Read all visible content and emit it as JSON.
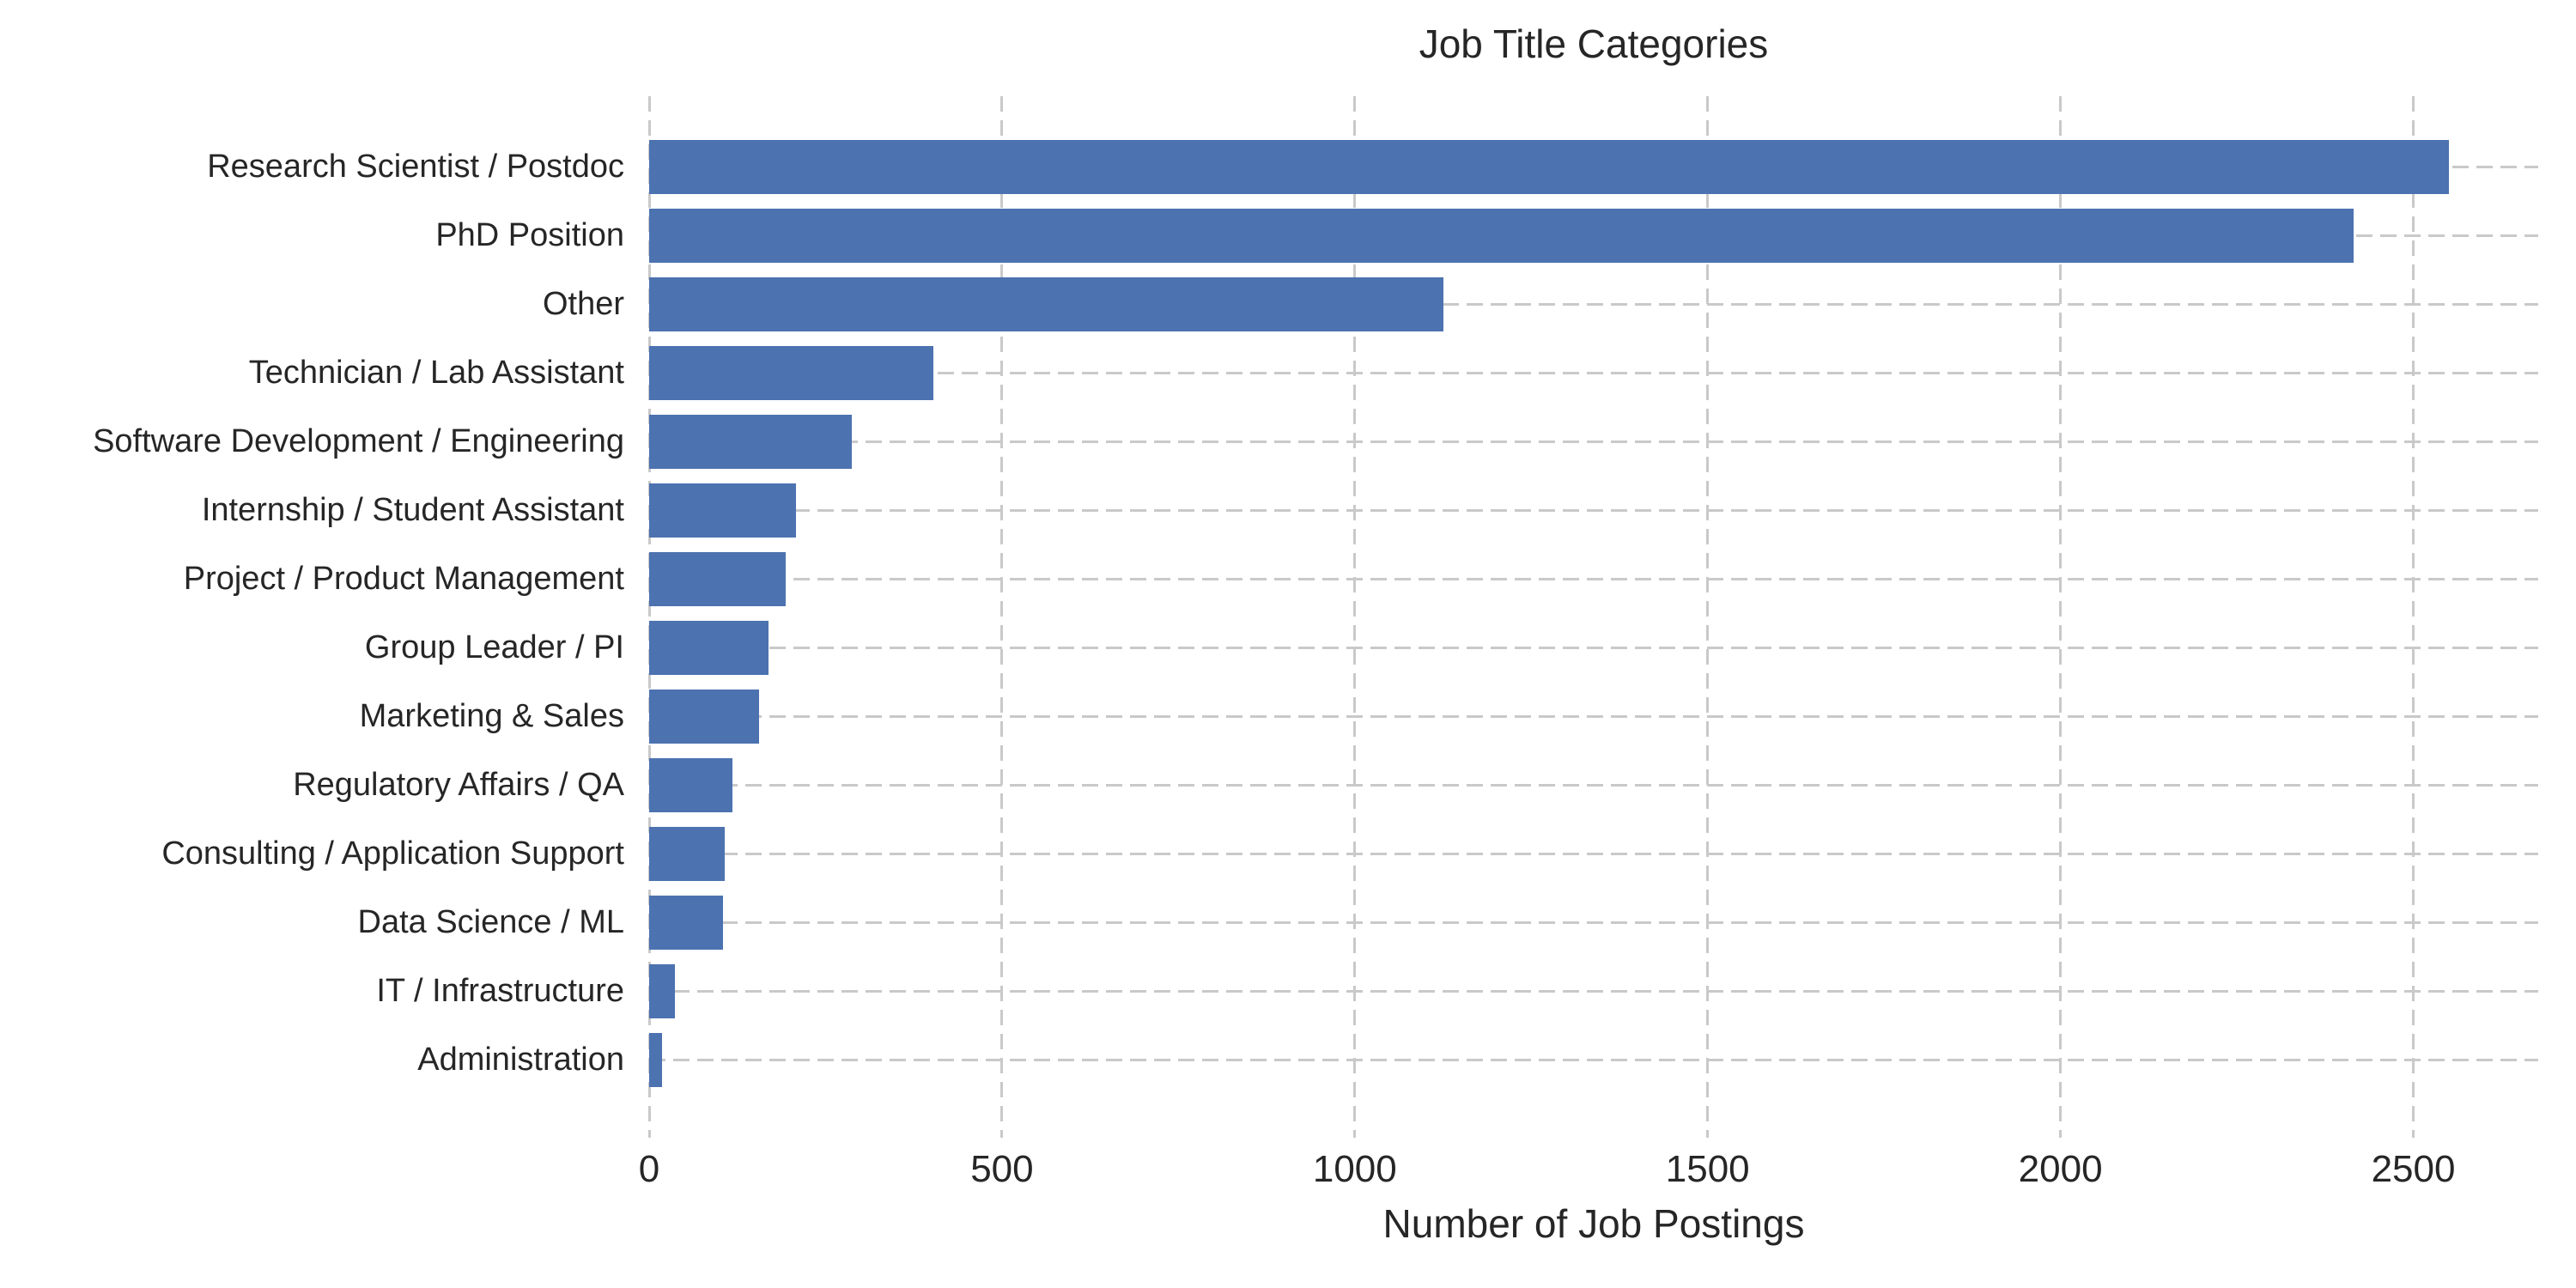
{
  "chart_data": {
    "type": "bar",
    "orientation": "horizontal",
    "title": "Job Title Categories",
    "xlabel": "Number of Job Postings",
    "ylabel": "",
    "categories": [
      "Research Scientist / Postdoc",
      "PhD Position",
      "Other",
      "Technician / Lab Assistant",
      "Software Development / Engineering",
      "Internship / Student Assistant",
      "Project / Product Management",
      "Group Leader / PI",
      "Marketing & Sales",
      "Regulatory Affairs / QA",
      "Consulting / Application Support",
      "Data Science / ML",
      "IT / Infrastructure",
      "Administration"
    ],
    "values": [
      2550,
      2415,
      1125,
      403,
      287,
      208,
      193,
      169,
      156,
      118,
      107,
      105,
      36,
      18
    ],
    "xlim": [
      0,
      2677
    ],
    "xticks": [
      0,
      500,
      1000,
      1500,
      2000,
      2500
    ],
    "grid": "dashed",
    "legend": "none",
    "colors": {
      "bar": "#4C72B0",
      "grid": "#c9c9c9",
      "text": "#262626",
      "background": "#ffffff"
    }
  }
}
